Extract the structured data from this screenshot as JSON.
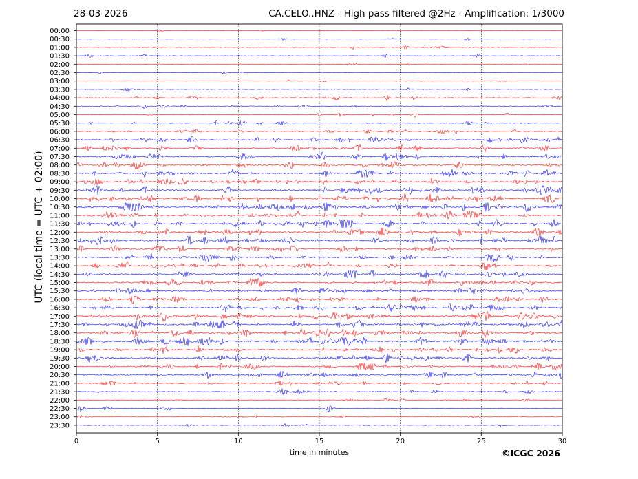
{
  "header": {
    "date": "28-03-2026",
    "title": "CA.CELO..HNZ - High pass filtered @2Hz - Amplification: 1/3000"
  },
  "credit": "©ICGC 2026",
  "chart_data": {
    "type": "line",
    "title": "CA.CELO..HNZ - High pass filtered @2Hz - Amplification: 1/3000",
    "xlabel": "time in minutes",
    "ylabel": "UTC (local time = UTC + 02:00)",
    "xlim": [
      0,
      30
    ],
    "x_ticks": [
      0,
      5,
      10,
      15,
      20,
      25,
      30
    ],
    "vertical_gridlines_at": [
      5,
      10,
      15,
      20,
      25
    ],
    "grid": "dotted vertical lines",
    "row_labels": [
      "00:00",
      "00:30",
      "01:00",
      "01:30",
      "02:00",
      "02:30",
      "03:00",
      "03:30",
      "04:00",
      "04:30",
      "05:00",
      "05:30",
      "06:00",
      "06:30",
      "07:00",
      "07:30",
      "08:00",
      "08:30",
      "09:00",
      "09:30",
      "10:00",
      "10:30",
      "11:00",
      "11:30",
      "12:00",
      "12:30",
      "13:00",
      "13:30",
      "14:00",
      "14:30",
      "15:00",
      "15:30",
      "16:00",
      "16:30",
      "17:00",
      "17:30",
      "18:00",
      "18:30",
      "19:00",
      "19:30",
      "20:00",
      "20:30",
      "21:00",
      "21:30",
      "22:00",
      "22:30",
      "23:00",
      "23:30"
    ],
    "trace_colors": [
      "#ff0000",
      "#0000ff"
    ],
    "color_rule": "alternating per row starting with red at 00:00",
    "activity_level_by_row": [
      0.04,
      0.05,
      0.06,
      0.07,
      0.05,
      0.05,
      0.05,
      0.05,
      0.18,
      0.16,
      0.14,
      0.18,
      0.25,
      0.4,
      0.35,
      0.4,
      0.45,
      0.45,
      0.5,
      0.55,
      0.55,
      0.6,
      0.6,
      0.55,
      0.55,
      0.55,
      0.45,
      0.45,
      0.45,
      0.45,
      0.45,
      0.45,
      0.5,
      0.55,
      0.55,
      0.55,
      0.6,
      0.6,
      0.5,
      0.5,
      0.45,
      0.4,
      0.25,
      0.18,
      0.14,
      0.14,
      0.1,
      0.06
    ]
  }
}
